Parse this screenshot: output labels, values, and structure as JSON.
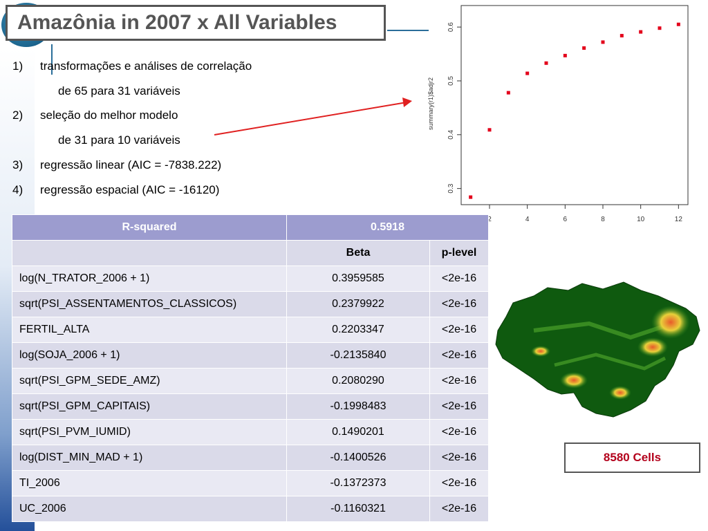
{
  "title": "Amazônia in 2007 x All Variables",
  "steps": [
    {
      "num": "1)",
      "text": "transformações e análises de correlação"
    },
    {
      "num": "",
      "text": "de 65 para 31 variáveis"
    },
    {
      "num": "2)",
      "text": "seleção do melhor modelo"
    },
    {
      "num": "",
      "text": "de 31 para 10 variáveis"
    },
    {
      "num": "3)",
      "text": "regressão linear (AIC = -7838.222)"
    },
    {
      "num": "4)",
      "text": "regressão espacial (AIC = -16120)"
    }
  ],
  "table": {
    "rsq_label": "R-squared",
    "rsq_value": "0.5918",
    "col_beta": "Beta",
    "col_plevel": "p-level",
    "rows": [
      {
        "var": "log(N_TRATOR_2006 + 1)",
        "beta": "0.3959585",
        "p": "<2e-16"
      },
      {
        "var": "sqrt(PSI_ASSENTAMENTOS_CLASSICOS)",
        "beta": "0.2379922",
        "p": "<2e-16"
      },
      {
        "var": "FERTIL_ALTA",
        "beta": "0.2203347",
        "p": "<2e-16"
      },
      {
        "var": "log(SOJA_2006 + 1)",
        "beta": "-0.2135840",
        "p": "<2e-16"
      },
      {
        "var": "sqrt(PSI_GPM_SEDE_AMZ)",
        "beta": "0.2080290",
        "p": "<2e-16"
      },
      {
        "var": "sqrt(PSI_GPM_CAPITAIS)",
        "beta": "-0.1998483",
        "p": "<2e-16"
      },
      {
        "var": "sqrt(PSI_PVM_IUMID)",
        "beta": "0.1490201",
        "p": "<2e-16"
      },
      {
        "var": "log(DIST_MIN_MAD + 1)",
        "beta": "-0.1400526",
        "p": "<2e-16"
      },
      {
        "var": "TI_2006",
        "beta": "-0.1372373",
        "p": "<2e-16"
      },
      {
        "var": "UC_2006",
        "beta": "-0.1160321",
        "p": "<2e-16"
      }
    ]
  },
  "cells_label": "8580 Cells",
  "arrow_color": "#e02020",
  "chart_data": {
    "type": "scatter",
    "ylabel": "summary(r1)$adjr2",
    "xlabel": "",
    "x": [
      1,
      2,
      3,
      4,
      5,
      6,
      7,
      8,
      9,
      10,
      11,
      12
    ],
    "y": [
      0.284,
      0.409,
      0.478,
      0.514,
      0.533,
      0.547,
      0.561,
      0.572,
      0.584,
      0.591,
      0.598,
      0.605
    ],
    "xticks": [
      "2",
      "4",
      "6",
      "8",
      "10",
      "12"
    ],
    "yticks": [
      "0.3",
      "0.4",
      "0.5",
      "0.6"
    ],
    "xlim": [
      0.5,
      12.5
    ],
    "ylim": [
      0.27,
      0.64
    ],
    "marker_color": "#e3001b",
    "grid": false
  }
}
